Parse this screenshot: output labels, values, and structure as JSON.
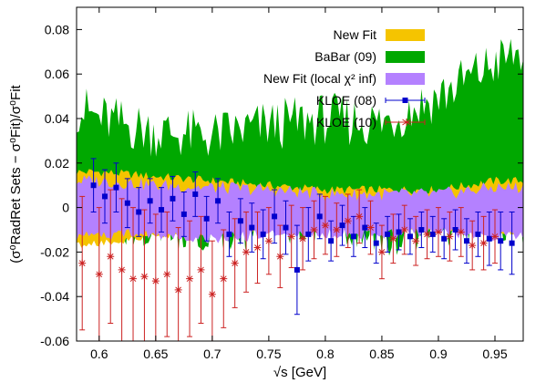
{
  "chart_data": {
    "type": "line",
    "xlabel": "√s [GeV]",
    "ylabel": "(σ⁰RadRet Sets − σ⁰Fit)/σ⁰Fit",
    "xlim": [
      0.58,
      0.975
    ],
    "ylim": [
      -0.06,
      0.09
    ],
    "x_ticks": [
      0.6,
      0.65,
      0.7,
      0.75,
      0.8,
      0.85,
      0.9,
      0.95
    ],
    "x_tick_labels": [
      "0.6",
      "0.65",
      "0.7",
      "0.75",
      "0.8",
      "0.85",
      "0.9",
      "0.95"
    ],
    "y_ticks": [
      -0.06,
      -0.04,
      -0.02,
      0,
      0.02,
      0.04,
      0.06,
      0.08
    ],
    "y_tick_labels": [
      "-0.06",
      "-0.04",
      "-0.02",
      "0",
      "0.02",
      "0.04",
      "0.06",
      "0.08"
    ],
    "legend_position": "top-right",
    "grid": false,
    "bands": [
      {
        "name": "New Fit",
        "color": "#f5c400",
        "x": [
          0.58,
          0.6,
          0.65,
          0.7,
          0.75,
          0.8,
          0.85,
          0.9,
          0.95,
          0.975
        ],
        "upper": [
          0.016,
          0.016,
          0.014,
          0.012,
          0.01,
          0.008,
          0.008,
          0.008,
          0.012,
          0.012
        ],
        "lower": [
          -0.017,
          -0.016,
          -0.013,
          -0.011,
          -0.009,
          -0.008,
          -0.008,
          -0.009,
          -0.011,
          -0.011
        ]
      },
      {
        "name": "BaBar (09)",
        "color": "#00a800",
        "x": [
          0.58,
          0.6,
          0.65,
          0.7,
          0.75,
          0.8,
          0.85,
          0.9,
          0.95,
          0.975
        ],
        "upper": [
          0.045,
          0.04,
          0.034,
          0.032,
          0.037,
          0.04,
          0.038,
          0.05,
          0.065,
          0.07
        ],
        "lower": [
          -0.007,
          -0.005,
          -0.01,
          -0.012,
          -0.01,
          -0.005,
          -0.014,
          -0.008,
          -0.006,
          -0.01
        ]
      },
      {
        "name": "New Fit (local χ² inf)",
        "color": "#b481ff",
        "x": [
          0.58,
          0.6,
          0.65,
          0.7,
          0.75,
          0.8,
          0.85,
          0.9,
          0.95,
          0.975
        ],
        "upper": [
          0.012,
          0.012,
          0.01,
          0.009,
          0.008,
          0.006,
          0.006,
          0.006,
          0.009,
          0.009
        ],
        "lower": [
          -0.013,
          -0.012,
          -0.012,
          -0.014,
          -0.012,
          -0.012,
          -0.012,
          -0.011,
          -0.013,
          -0.013
        ]
      }
    ],
    "series": [
      {
        "name": "KLOE (08)",
        "color": "#0000cc",
        "marker": "square",
        "x": [
          0.595,
          0.605,
          0.615,
          0.625,
          0.635,
          0.645,
          0.655,
          0.665,
          0.675,
          0.685,
          0.695,
          0.705,
          0.715,
          0.725,
          0.735,
          0.745,
          0.755,
          0.765,
          0.775,
          0.785,
          0.795,
          0.805,
          0.815,
          0.825,
          0.835,
          0.845,
          0.855,
          0.865,
          0.875,
          0.885,
          0.895,
          0.905,
          0.915,
          0.925,
          0.935,
          0.945,
          0.955,
          0.965
        ],
        "y": [
          0.01,
          0.005,
          0.009,
          0.002,
          -0.002,
          0.003,
          -0.001,
          0.004,
          -0.003,
          0.006,
          -0.005,
          0.003,
          -0.012,
          -0.006,
          -0.009,
          -0.012,
          -0.004,
          -0.009,
          -0.028,
          -0.012,
          -0.004,
          -0.015,
          -0.008,
          -0.013,
          -0.009,
          -0.016,
          -0.012,
          -0.011,
          -0.013,
          -0.01,
          -0.012,
          -0.014,
          -0.01,
          -0.015,
          -0.012,
          -0.014,
          -0.015,
          -0.016
        ],
        "err": [
          0.012,
          0.012,
          0.011,
          0.011,
          0.011,
          0.01,
          0.01,
          0.01,
          0.01,
          0.01,
          0.01,
          0.01,
          0.01,
          0.01,
          0.011,
          0.011,
          0.012,
          0.012,
          0.02,
          0.012,
          0.01,
          0.009,
          0.009,
          0.009,
          0.009,
          0.009,
          0.008,
          0.008,
          0.008,
          0.008,
          0.008,
          0.009,
          0.009,
          0.01,
          0.01,
          0.012,
          0.013,
          0.014
        ]
      },
      {
        "name": "KLOE (10)",
        "color": "#cc2222",
        "marker": "star",
        "x": [
          0.585,
          0.6,
          0.61,
          0.62,
          0.63,
          0.64,
          0.65,
          0.66,
          0.67,
          0.68,
          0.69,
          0.7,
          0.71,
          0.72,
          0.73,
          0.74,
          0.75,
          0.76,
          0.77,
          0.78,
          0.79,
          0.8,
          0.81,
          0.82,
          0.83,
          0.84,
          0.85,
          0.86,
          0.87,
          0.88,
          0.89,
          0.9,
          0.91,
          0.92,
          0.93,
          0.94,
          0.95
        ],
        "y": [
          -0.025,
          -0.03,
          -0.022,
          -0.028,
          -0.032,
          -0.031,
          -0.033,
          -0.03,
          -0.037,
          -0.032,
          -0.028,
          -0.039,
          -0.032,
          -0.025,
          -0.02,
          -0.018,
          -0.015,
          -0.022,
          -0.013,
          -0.014,
          -0.01,
          -0.008,
          -0.01,
          -0.006,
          -0.004,
          -0.009,
          -0.02,
          -0.014,
          -0.01,
          -0.015,
          -0.012,
          -0.011,
          -0.013,
          -0.011,
          -0.017,
          -0.016,
          -0.013
        ],
        "err": [
          0.03,
          0.03,
          0.03,
          0.032,
          0.032,
          0.03,
          0.03,
          0.028,
          0.028,
          0.026,
          0.024,
          0.024,
          0.022,
          0.02,
          0.018,
          0.016,
          0.015,
          0.014,
          0.014,
          0.014,
          0.013,
          0.013,
          0.012,
          0.012,
          0.012,
          0.012,
          0.012,
          0.011,
          0.011,
          0.011,
          0.011,
          0.011,
          0.011,
          0.011,
          0.011,
          0.012,
          0.012
        ]
      }
    ]
  }
}
